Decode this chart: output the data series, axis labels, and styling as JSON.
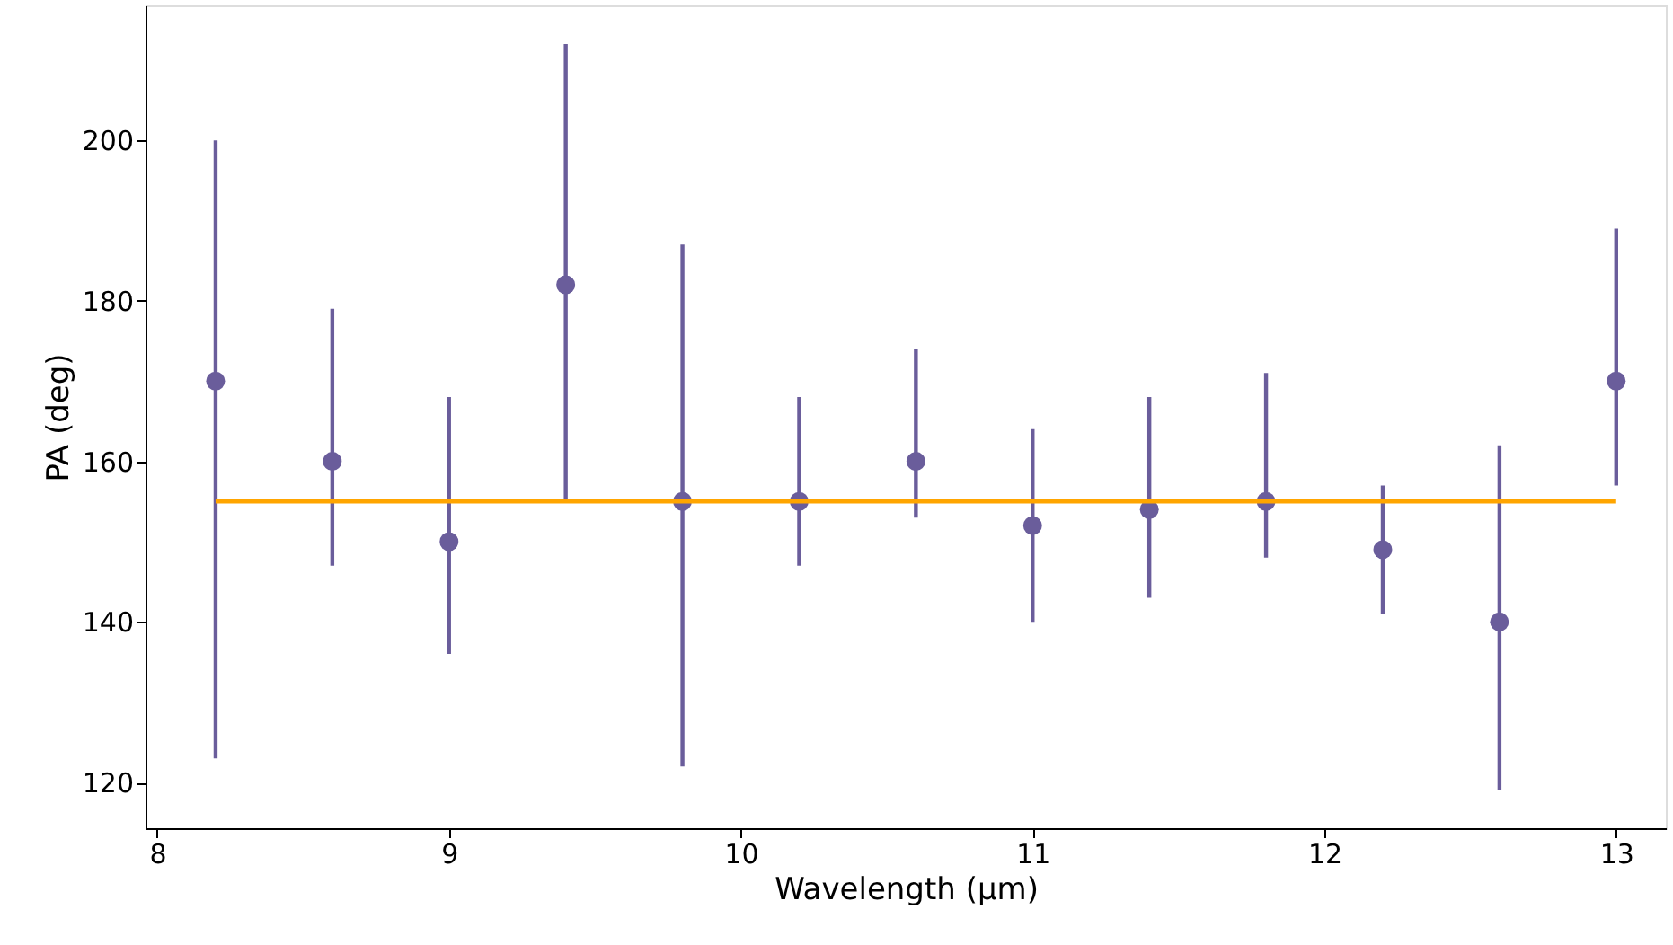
{
  "chart_data": {
    "type": "scatter",
    "xlabel": "Wavelength (μm)",
    "ylabel": "PA (deg)",
    "x": [
      8.2,
      8.6,
      9.0,
      9.4,
      9.8,
      10.2,
      10.6,
      11.0,
      11.4,
      11.8,
      12.2,
      12.6,
      13.0
    ],
    "series": [
      {
        "color": "#6a5d9b",
        "marker": "circle",
        "values": [
          170,
          160,
          150,
          182,
          155,
          155,
          160,
          152,
          154,
          155,
          149,
          140,
          170
        ],
        "errors": [
          [
            123,
            200
          ],
          [
            147,
            179
          ],
          [
            136,
            168
          ],
          [
            155,
            212
          ],
          [
            122,
            187
          ],
          [
            147,
            168
          ],
          [
            153,
            174
          ],
          [
            140,
            164
          ],
          [
            143,
            168
          ],
          [
            148,
            171
          ],
          [
            141,
            157
          ],
          [
            119,
            162
          ],
          [
            157,
            189
          ]
        ]
      },
      {
        "type": "line",
        "color": "#ffa500",
        "line_style": "solid",
        "x": [
          8.2,
          13.0
        ],
        "values": [
          155,
          155
        ]
      }
    ],
    "xlim": [
      7.96,
      13.17
    ],
    "ylim": [
      114.3,
      216.8
    ],
    "xticks": [
      8,
      9,
      10,
      11,
      12,
      13
    ],
    "yticks": [
      120,
      140,
      160,
      180,
      200
    ],
    "grid": false
  }
}
